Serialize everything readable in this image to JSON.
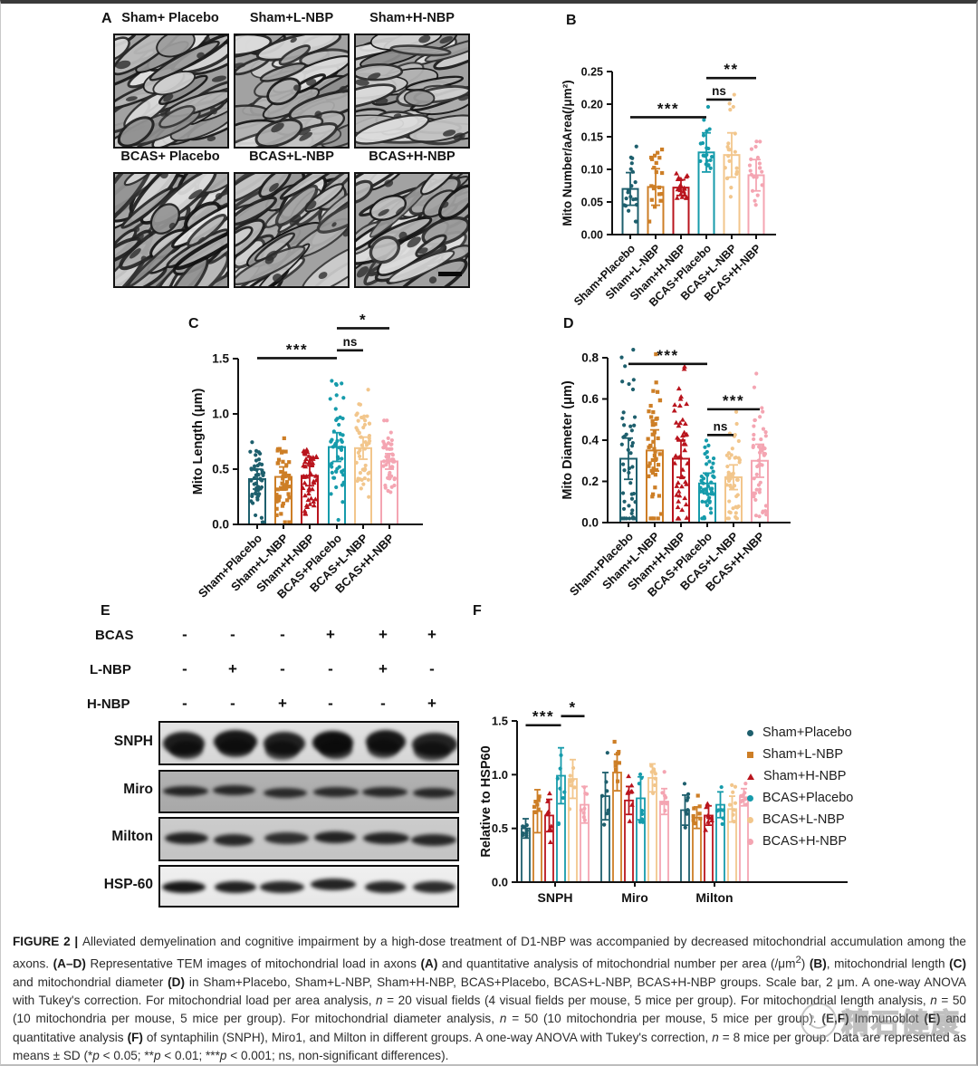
{
  "groups": [
    {
      "name": "Sham+Placebo",
      "color": "#1e5f6d",
      "shape": "circle"
    },
    {
      "name": "Sham+L-NBP",
      "color": "#cd7e26",
      "shape": "square"
    },
    {
      "name": "Sham+H-NBP",
      "color": "#b9141d",
      "shape": "triangle"
    },
    {
      "name": "BCAS+Placebo",
      "color": "#169bab",
      "shape": "circle"
    },
    {
      "name": "BCAS+L-NBP",
      "color": "#f2c68c",
      "shape": "circle"
    },
    {
      "name": "BCAS+H-NBP",
      "color": "#f4a5b2",
      "shape": "circle"
    }
  ],
  "panel_a": {
    "label": "A",
    "images": [
      {
        "label": "Sham+ Placebo"
      },
      {
        "label": "Sham+L-NBP"
      },
      {
        "label": "Sham+H-NBP"
      },
      {
        "label": "BCAS+ Placebo"
      },
      {
        "label": "BCAS+L-NBP"
      },
      {
        "label": "BCAS+H-NBP"
      }
    ],
    "scale_bar": "2 um"
  },
  "chart_data": [
    {
      "id": "B",
      "label": "B",
      "type": "bar",
      "ylabel": "Mito Number/aArea(/μm²)",
      "ylim": [
        0,
        0.25
      ],
      "yticks": [
        "0.00",
        "0.05",
        "0.10",
        "0.15",
        "0.20",
        "0.25"
      ],
      "categories": [
        "Sham+Placebo",
        "Sham+L-NBP",
        "Sham+H-NBP",
        "BCAS+Placebo",
        "BCAS+L-NBP",
        "BCAS+H-NBP"
      ],
      "values": [
        0.07,
        0.073,
        0.072,
        0.126,
        0.122,
        0.091
      ],
      "sd": [
        0.025,
        0.028,
        0.012,
        0.03,
        0.034,
        0.024
      ],
      "points_per_bar": 20,
      "sig": [
        {
          "from": 0,
          "to": 3,
          "y": 0.18,
          "label": "***"
        },
        {
          "from": 3,
          "to": 4,
          "y": 0.207,
          "label": "ns"
        },
        {
          "from": 3,
          "to": 5,
          "y": 0.24,
          "label": "**"
        }
      ]
    },
    {
      "id": "C",
      "label": "C",
      "type": "bar",
      "ylabel": "Mito Length (μm)",
      "ylim": [
        0,
        1.5
      ],
      "yticks": [
        "0.0",
        "0.5",
        "1.0",
        "1.5"
      ],
      "categories": [
        "Sham+Placebo",
        "Sham+L-NBP",
        "Sham+H-NBP",
        "BCAS+Placebo",
        "BCAS+L-NBP",
        "BCAS+H-NBP"
      ],
      "values": [
        0.41,
        0.43,
        0.44,
        0.7,
        0.69,
        0.57
      ],
      "sd": [
        0.09,
        0.09,
        0.09,
        0.13,
        0.1,
        0.07
      ],
      "points_per_bar": 50,
      "sig": [
        {
          "from": 0,
          "to": 3,
          "y": 1.505,
          "label": "***"
        },
        {
          "from": 3,
          "to": 4,
          "y": 1.575,
          "label": "ns"
        },
        {
          "from": 3,
          "to": 5,
          "y": 1.775,
          "label": "*"
        }
      ]
    },
    {
      "id": "D",
      "label": "D",
      "type": "bar",
      "ylabel": "Mito Diameter (μm)",
      "ylim": [
        0,
        0.8
      ],
      "yticks": [
        "0.0",
        "0.2",
        "0.4",
        "0.6",
        "0.8"
      ],
      "categories": [
        "Sham+Placebo",
        "Sham+L-NBP",
        "Sham+H-NBP",
        "BCAS+Placebo",
        "BCAS+L-NBP",
        "BCAS+H-NBP"
      ],
      "values": [
        0.31,
        0.35,
        0.31,
        0.19,
        0.22,
        0.3
      ],
      "sd": [
        0.1,
        0.1,
        0.09,
        0.05,
        0.06,
        0.08
      ],
      "points_per_bar": 50,
      "sig": [
        {
          "from": 0,
          "to": 3,
          "y": 0.77,
          "label": "***"
        },
        {
          "from": 3,
          "to": 4,
          "y": 0.425,
          "label": "ns"
        },
        {
          "from": 3,
          "to": 5,
          "y": 0.55,
          "label": "***"
        }
      ]
    },
    {
      "id": "F",
      "label": "F",
      "type": "grouped-bar",
      "ylabel": "Relative to HSP60",
      "ylim": [
        0,
        1.5
      ],
      "yticks": [
        "0.0",
        "0.5",
        "1.0",
        "1.5"
      ],
      "categories": [
        "SNPH",
        "Miro",
        "Milton"
      ],
      "series": [
        {
          "name": "Sham+Placebo",
          "values": [
            0.5,
            0.8,
            0.67
          ],
          "sd": [
            0.09,
            0.22,
            0.14
          ]
        },
        {
          "name": "Sham+L-NBP",
          "values": [
            0.66,
            1.02,
            0.6
          ],
          "sd": [
            0.2,
            0.17,
            0.1
          ]
        },
        {
          "name": "Sham+H-NBP",
          "values": [
            0.62,
            0.76,
            0.62
          ],
          "sd": [
            0.15,
            0.13,
            0.09
          ]
        },
        {
          "name": "BCAS+Placebo",
          "values": [
            0.99,
            0.78,
            0.72
          ],
          "sd": [
            0.26,
            0.2,
            0.12
          ]
        },
        {
          "name": "BCAS+L-NBP",
          "values": [
            0.96,
            0.97,
            0.68
          ],
          "sd": [
            0.18,
            0.13,
            0.12
          ]
        },
        {
          "name": "BCAS+H-NBP",
          "values": [
            0.72,
            0.75,
            0.79
          ],
          "sd": [
            0.17,
            0.12,
            0.08
          ]
        }
      ],
      "points_per_bar": 8,
      "sig": [
        {
          "group": 0,
          "from": 0,
          "to": 3,
          "y": 1.46,
          "label": "***"
        },
        {
          "group": 0,
          "from": 3,
          "to": 5,
          "y": 1.545,
          "label": "*"
        }
      ],
      "legend_position": "right"
    }
  ],
  "panel_e": {
    "label": "E",
    "condition_rows": [
      {
        "label": "BCAS",
        "signs": [
          "-",
          "-",
          "-",
          "+",
          "+",
          "+"
        ]
      },
      {
        "label": "L-NBP",
        "signs": [
          "-",
          "+",
          "-",
          "-",
          "+",
          "-"
        ]
      },
      {
        "label": "H-NBP",
        "signs": [
          "-",
          "-",
          "+",
          "-",
          "-",
          "+"
        ]
      }
    ],
    "blots": [
      {
        "name": "SNPH",
        "band_intensity": [
          0.85,
          0.92,
          0.8,
          1.0,
          0.9,
          0.78
        ]
      },
      {
        "name": "Miro",
        "band_intensity": [
          0.72,
          0.7,
          0.62,
          0.62,
          0.66,
          0.66
        ]
      },
      {
        "name": "Milton",
        "band_intensity": [
          0.78,
          0.72,
          0.62,
          0.78,
          0.76,
          0.72
        ]
      },
      {
        "name": "HSP-60",
        "band_intensity": [
          0.92,
          0.82,
          0.76,
          0.8,
          0.76,
          0.72
        ]
      }
    ]
  },
  "caption": {
    "segments": [
      {
        "t": "FIGURE 2 | ",
        "b": true
      },
      {
        "t": "Alleviated demyelination and cognitive impairment by a high-dose treatment of D1-NBP was accompanied by decreased mitochondrial accumulation among the axons. "
      },
      {
        "t": "(A–D)",
        "b": true
      },
      {
        "t": " Representative TEM images of mitochondrial load in axons "
      },
      {
        "t": "(A)",
        "b": true
      },
      {
        "t": " and quantitative analysis of mitochondrial number per area (/μm"
      },
      {
        "t": "2",
        "sup": true
      },
      {
        "t": ") "
      },
      {
        "t": "(B)",
        "b": true
      },
      {
        "t": ", mitochondrial length "
      },
      {
        "t": "(C)",
        "b": true
      },
      {
        "t": " and mitochondrial diameter "
      },
      {
        "t": "(D)",
        "b": true
      },
      {
        "t": " in Sham+Placebo, Sham+L-NBP, Sham+H-NBP, BCAS+Placebo, BCAS+L-NBP, BCAS+H-NBP groups. Scale bar, 2 μm. A one-way ANOVA with Tukey's correction. For mitochondrial load per area analysis, "
      },
      {
        "t": "n",
        "i": true
      },
      {
        "t": " = 20 visual fields (4 visual fields per mouse, 5 mice per group). For mitochondrial length analysis, "
      },
      {
        "t": "n",
        "i": true
      },
      {
        "t": " = 50 (10 mitochondria per mouse, 5 mice per group). For mitochondrial diameter analysis, "
      },
      {
        "t": "n",
        "i": true
      },
      {
        "t": " = 50 (10 mitochondria per mouse, 5 mice per group). "
      },
      {
        "t": "(E,F)",
        "b": true
      },
      {
        "t": " Immunoblot "
      },
      {
        "t": "(E)",
        "b": true
      },
      {
        "t": " and quantitative analysis "
      },
      {
        "t": "(F)",
        "b": true
      },
      {
        "t": " of syntaphilin (SNPH), Miro1, and Milton in different groups. A one-way ANOVA with Tukey's correction, "
      },
      {
        "t": "n",
        "i": true
      },
      {
        "t": " = 8 mice per group. Data are represented as means ± SD (*"
      },
      {
        "t": "p",
        "i": true
      },
      {
        "t": " < 0.05; **"
      },
      {
        "t": "p",
        "i": true
      },
      {
        "t": " < 0.01; ***"
      },
      {
        "t": "p",
        "i": true
      },
      {
        "t": " < 0.001; ns, non-significant differences)."
      }
    ]
  },
  "watermark": {
    "text": "精石健康"
  }
}
